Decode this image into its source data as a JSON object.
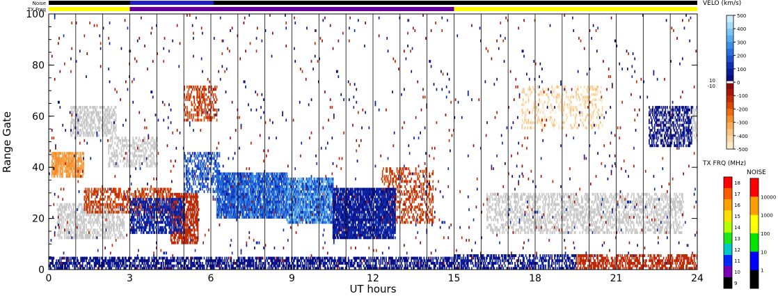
{
  "chart_data": {
    "type": "heatmap",
    "xlabel": "UT hours",
    "ylabel": "Range Gate",
    "xlim": [
      0,
      24
    ],
    "ylim": [
      0,
      100
    ],
    "x_ticks": [
      "0",
      "3",
      "6",
      "9",
      "12",
      "15",
      "18",
      "21",
      "24"
    ],
    "y_ticks": [
      "0",
      "20",
      "40",
      "60",
      "80",
      "100"
    ],
    "grid": "vertical lines every hour",
    "top_bars": {
      "noise_label": "Noise",
      "txfreq_label": "TX Freq",
      "txfreq_segments": [
        {
          "start": 0,
          "end": 3,
          "color": "#ffff00"
        },
        {
          "start": 3,
          "end": 15,
          "color": "#660099"
        },
        {
          "start": 15,
          "end": 24,
          "color": "#ffff00"
        }
      ]
    },
    "velocity_scale": {
      "title": "VELO (km/s)",
      "labels": [
        "500",
        "400",
        "300",
        "200",
        "100",
        "0",
        "-100",
        "-200",
        "-300",
        "-400",
        "-500"
      ],
      "center_labels": [
        "10",
        "-10"
      ],
      "positive_colors": [
        "#0a0a78",
        "#0a1a96",
        "#1030b4",
        "#1a50cc",
        "#2a70dc",
        "#3a90e8",
        "#58aef0",
        "#7cc6f6",
        "#a6dcfa",
        "#cceefe"
      ],
      "negative_colors": [
        "#8b0a0a",
        "#a8160a",
        "#c02a06",
        "#d84a06",
        "#ec6e10",
        "#f49030",
        "#f8ac58",
        "#fac47e",
        "#fcd8a6",
        "#fee8cc"
      ]
    },
    "txfreq_scale": {
      "title": "TX FRQ (MHz)",
      "labels": [
        "18",
        "17",
        "16",
        "15",
        "14",
        "13",
        "12",
        "11",
        "10",
        "9"
      ],
      "colors": [
        "#ff0000",
        "#ff5a00",
        "#ffa000",
        "#ffdf00",
        "#b4ff00",
        "#1ee61e",
        "#00c8c8",
        "#0028ff",
        "#7800b4",
        "#000000"
      ]
    },
    "noise_scale": {
      "title": "NOISE",
      "labels": [
        "10000",
        "1000",
        "100",
        "10",
        "1"
      ],
      "colors": [
        "#ff0000",
        "#ffa000",
        "#ffff00",
        "#00e600",
        "#0000ff",
        "#000000"
      ]
    },
    "ground_scatter_color": "#c8c8c8",
    "scatter_regions": [
      {
        "kind": "ground",
        "x": [
          0.3,
          2.8
        ],
        "y": [
          12,
          26
        ],
        "density": 0.55
      },
      {
        "kind": "ground",
        "x": [
          0.8,
          2.5
        ],
        "y": [
          52,
          64
        ],
        "density": 0.55
      },
      {
        "kind": "ground",
        "x": [
          2.2,
          4.0
        ],
        "y": [
          40,
          52
        ],
        "density": 0.45
      },
      {
        "kind": "ground",
        "x": [
          16.2,
          23.5
        ],
        "y": [
          14,
          30
        ],
        "density": 0.45
      },
      {
        "kind": "ground",
        "x": [
          22.5,
          24.0
        ],
        "y": [
          50,
          64
        ],
        "density": 0.5
      },
      {
        "kind": "neg",
        "x": [
          0.1,
          1.3
        ],
        "y": [
          36,
          46
        ],
        "density": 0.75,
        "v": [
          -250,
          -350
        ]
      },
      {
        "kind": "neg",
        "x": [
          1.3,
          4.5
        ],
        "y": [
          22,
          32
        ],
        "density": 0.5,
        "v": [
          -100,
          -200
        ]
      },
      {
        "kind": "neg",
        "x": [
          4.5,
          5.5
        ],
        "y": [
          10,
          30
        ],
        "density": 0.7,
        "v": [
          -100,
          -150
        ]
      },
      {
        "kind": "neg",
        "x": [
          5.0,
          6.2
        ],
        "y": [
          58,
          72
        ],
        "density": 0.4,
        "v": [
          -100,
          -200
        ]
      },
      {
        "kind": "neg",
        "x": [
          12.3,
          14.2
        ],
        "y": [
          18,
          40
        ],
        "density": 0.35,
        "v": [
          -100,
          -200
        ]
      },
      {
        "kind": "neg",
        "x": [
          17.5,
          20.5
        ],
        "y": [
          55,
          72
        ],
        "density": 0.25,
        "v": [
          -350,
          -480
        ]
      },
      {
        "kind": "neg",
        "x": [
          19.5,
          24.0
        ],
        "y": [
          0,
          6
        ],
        "density": 0.55,
        "v": [
          -100,
          -150
        ]
      },
      {
        "kind": "pos",
        "x": [
          3.0,
          5.0
        ],
        "y": [
          14,
          28
        ],
        "density": 0.6,
        "v": [
          50,
          150
        ]
      },
      {
        "kind": "pos",
        "x": [
          6.2,
          8.8
        ],
        "y": [
          20,
          38
        ],
        "density": 0.85,
        "v": [
          100,
          300
        ]
      },
      {
        "kind": "pos",
        "x": [
          8.8,
          10.5
        ],
        "y": [
          18,
          36
        ],
        "density": 0.85,
        "v": [
          100,
          400
        ]
      },
      {
        "kind": "pos",
        "x": [
          10.5,
          12.8
        ],
        "y": [
          12,
          32
        ],
        "density": 0.85,
        "v": [
          20,
          150
        ]
      },
      {
        "kind": "pos",
        "x": [
          5.0,
          6.3
        ],
        "y": [
          30,
          46
        ],
        "density": 0.45,
        "v": [
          100,
          250
        ]
      },
      {
        "kind": "pos",
        "x": [
          22.2,
          23.8
        ],
        "y": [
          48,
          64
        ],
        "density": 0.45,
        "v": [
          20,
          100
        ]
      },
      {
        "kind": "pos",
        "x": [
          0.0,
          15.0
        ],
        "y": [
          0,
          5
        ],
        "density": 0.6,
        "v": [
          20,
          100
        ]
      },
      {
        "kind": "pos",
        "x": [
          15.0,
          19.5
        ],
        "y": [
          0,
          6
        ],
        "density": 0.55,
        "v": [
          20,
          120
        ]
      },
      {
        "kind": "sparse",
        "x": [
          0.0,
          24.0
        ],
        "y": [
          0,
          100
        ],
        "density": 0.015,
        "v": [
          -150,
          150
        ]
      }
    ]
  }
}
